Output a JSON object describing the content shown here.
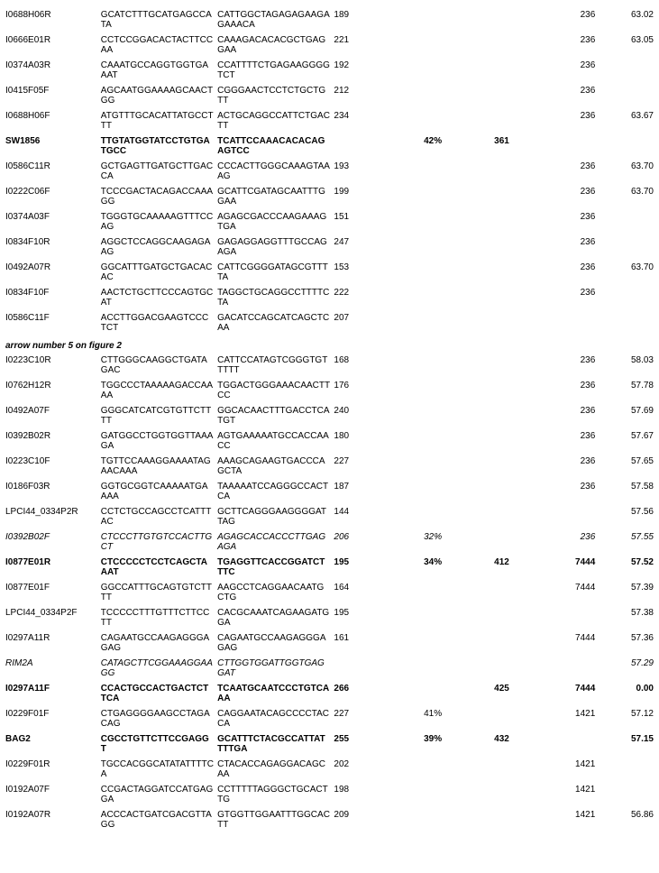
{
  "columns": {
    "id_width": 90,
    "seq1_width": 110,
    "seq2_width": 110,
    "num1_width": 60,
    "pct_width": 70,
    "num2_width": 60,
    "num3_width": 60,
    "num4_width": 55
  },
  "section_header": "arrow number 5 on figure 2",
  "rows": [
    {
      "id": "I0688H06R",
      "seq1": "GCATCTTTGCATGAGCCATA",
      "seq2": "CATTGGCTAGAGAGAAGAGAAACA",
      "n1": "189",
      "pct": "",
      "n2": "",
      "n3": "236",
      "n4": "63.02",
      "style": ""
    },
    {
      "id": "I0666E01R",
      "seq1": "CCTCCGGACACTACTTCCAA",
      "seq2": "CAAAGACACACGCTGAGGAA",
      "n1": "221",
      "pct": "",
      "n2": "",
      "n3": "236",
      "n4": "63.05",
      "style": ""
    },
    {
      "id": "I0374A03R",
      "seq1": "CAAATGCCAGGTGGTGAAAT",
      "seq2": "CCATTTTCTGAGAAGGGGTCT",
      "n1": "192",
      "pct": "",
      "n2": "",
      "n3": "236",
      "n4": "",
      "style": ""
    },
    {
      "id": "I0415F05F",
      "seq1": "AGCAATGGAAAAGCAACTGG",
      "seq2": "CGGGAACTCCTCTGCTGTT",
      "n1": "212",
      "pct": "",
      "n2": "",
      "n3": "236",
      "n4": "",
      "style": ""
    },
    {
      "id": "I0688H06F",
      "seq1": "ATGTTTGCACATTATGCCTTT",
      "seq2": "ACTGCAGGCCATTCTGACTT",
      "n1": "234",
      "pct": "",
      "n2": "",
      "n3": "236",
      "n4": "63.67",
      "style": ""
    },
    {
      "id": "SW1856",
      "seq1": "TTGTATGGTATCCTGTGATGCC",
      "seq2": "TCATTCCAAACACACAGAGTCC",
      "n1": "",
      "pct": "42%",
      "n2": "361",
      "n3": "",
      "n4": "",
      "style": "bold"
    },
    {
      "id": "I0586C11R",
      "seq1": "GCTGAGTTGATGCTTGACCA",
      "seq2": "CCCACTTGGGCAAAGTAAAG",
      "n1": "193",
      "pct": "",
      "n2": "",
      "n3": "236",
      "n4": "63.70",
      "style": ""
    },
    {
      "id": "I0222C06F",
      "seq1": "TCCCGACTACAGACCAAAGG",
      "seq2": "GCATTCGATAGCAATTTGGAA",
      "n1": "199",
      "pct": "",
      "n2": "",
      "n3": "236",
      "n4": "63.70",
      "style": ""
    },
    {
      "id": "I0374A03F",
      "seq1": "TGGGTGCAAAAAGTTTCCAG",
      "seq2": "AGAGCGACCCAAGAAAGTGA",
      "n1": "151",
      "pct": "",
      "n2": "",
      "n3": "236",
      "n4": "",
      "style": ""
    },
    {
      "id": "I0834F10R",
      "seq1": "AGGCTCCAGGCAAGAGAAG",
      "seq2": "GAGAGGAGGTTTGCCAGAGA",
      "n1": "247",
      "pct": "",
      "n2": "",
      "n3": "236",
      "n4": "",
      "style": ""
    },
    {
      "id": "I0492A07R",
      "seq1": "GGCATTTGATGCTGACACAC",
      "seq2": "CATTCGGGGATAGCGTTTTA",
      "n1": "153",
      "pct": "",
      "n2": "",
      "n3": "236",
      "n4": "63.70",
      "style": ""
    },
    {
      "id": "I0834F10F",
      "seq1": "AACTCTGCTTCCCAGTGCAT",
      "seq2": "TAGGCTGCAGGCCTTTTCTA",
      "n1": "222",
      "pct": "",
      "n2": "",
      "n3": "236",
      "n4": "",
      "style": ""
    },
    {
      "id": "I0586C11F",
      "seq1": "ACCTTGGACGAAGTCCCTCT",
      "seq2": "GACATCCAGCATCAGCTCAA",
      "n1": "207",
      "pct": "",
      "n2": "",
      "n3": "",
      "n4": "",
      "style": ""
    },
    {
      "section": true
    },
    {
      "id": "I0223C10R",
      "seq1": "CTTGGGCAAGGCTGATAGAC",
      "seq2": "CATTCCATAGTCGGGTGTTTTT",
      "n1": "168",
      "pct": "",
      "n2": "",
      "n3": "236",
      "n4": "58.03",
      "style": ""
    },
    {
      "id": "I0762H12R",
      "seq1": "TGGCCCTAAAAAGACCAAAA",
      "seq2": "TGGACTGGGAAACAACTTCC",
      "n1": "176",
      "pct": "",
      "n2": "",
      "n3": "236",
      "n4": "57.78",
      "style": ""
    },
    {
      "id": "I0492A07F",
      "seq1": "GGGCATCATCGTGTTCTTTT",
      "seq2": "GGCACAACTTTGACCTCATGT",
      "n1": "240",
      "pct": "",
      "n2": "",
      "n3": "236",
      "n4": "57.69",
      "style": ""
    },
    {
      "id": "I0392B02R",
      "seq1": "GATGGCCTGGTGGTTAAAGA",
      "seq2": "AGTGAAAAATGCCACCAACC",
      "n1": "180",
      "pct": "",
      "n2": "",
      "n3": "236",
      "n4": "57.67",
      "style": ""
    },
    {
      "id": "I0223C10F",
      "seq1": "TGTTCCAAAGGAAAATAGAACAAA",
      "seq2": "AAAGCAGAAGTGACCCAGCTA",
      "n1": "227",
      "pct": "",
      "n2": "",
      "n3": "236",
      "n4": "57.65",
      "style": ""
    },
    {
      "id": "I0186F03R",
      "seq1": "GGTGCGGTCAAAAATGAAAA",
      "seq2": "TAAAAATCCAGGGCCACTCA",
      "n1": "187",
      "pct": "",
      "n2": "",
      "n3": "236",
      "n4": "57.58",
      "style": ""
    },
    {
      "id": "LPCI44_0334P2R",
      "seq1": "CCTCTGCCAGCCTCATTTAC",
      "seq2": "GCTTCAGGGAAGGGGATTAG",
      "n1": "144",
      "pct": "",
      "n2": "",
      "n3": "",
      "n4": "57.56",
      "style": ""
    },
    {
      "id": "I0392B02F",
      "seq1": "CTCCCTTGTGTCCACTTGCT",
      "seq2": "AGAGCACCACCCTTGAGAGA",
      "n1": "206",
      "pct": "32%",
      "n2": "",
      "n3": "236",
      "n4": "57.55",
      "style": "italic"
    },
    {
      "id": "I0877E01R",
      "seq1": "CTCCCCCTCCTCAGCTAAAT",
      "seq2": "TGAGGTTCACCGGATCTTTC",
      "n1": "195",
      "pct": "34%",
      "n2": "412",
      "n3": "7444",
      "n4": "57.52",
      "style": "bold"
    },
    {
      "id": "I0877E01F",
      "seq1": "GGCCATTTGCAGTGTCTTTT",
      "seq2": "AAGCCTCAGGAACAATGCTG",
      "n1": "164",
      "pct": "",
      "n2": "",
      "n3": "7444",
      "n4": "57.39",
      "style": ""
    },
    {
      "id": "LPCI44_0334P2F",
      "seq1": "TCCCCCTTTGTTTCTTCCTT",
      "seq2": "CACGCAAATCAGAAGATGGA",
      "n1": "195",
      "pct": "",
      "n2": "",
      "n3": "",
      "n4": "57.38",
      "style": ""
    },
    {
      "id": "I0297A11R",
      "seq1": "CAGAATGCCAAGAGGGAGAG",
      "seq2": "CAGAATGCCAAGAGGGAGAG",
      "n1": "161",
      "pct": "",
      "n2": "",
      "n3": "7444",
      "n4": "57.36",
      "style": ""
    },
    {
      "id": "RIM2A",
      "seq1": "CATAGCTTCGGAAAGGAAGG",
      "seq2": "CTTGGTGGATTGGTGAGGAT",
      "n1": "",
      "pct": "",
      "n2": "",
      "n3": "",
      "n4": "57.29",
      "style": "italic"
    },
    {
      "id": "I0297A11F",
      "seq1": "CCACTGCCACTGACTCTTCA",
      "seq2": "TCAATGCAATCCCTGTCAAA",
      "n1": "266",
      "pct": "",
      "n2": "425",
      "n3": "7444",
      "n4": "0.00",
      "style": "bold"
    },
    {
      "id": "I0229F01F",
      "seq1": "CTGAGGGGAAGCCTAGACAG",
      "seq2": "CAGGAATACAGCCCCTACCA",
      "n1": "227",
      "pct": "41%",
      "n2": "",
      "n3": "1421",
      "n4": "57.12",
      "style": ""
    },
    {
      "id": "BAG2",
      "seq1": "CGCCTGTTCTTCCGAGGT",
      "seq2": "GCATTTCTACGCCATTATTTTGA",
      "n1": "255",
      "pct": "39%",
      "n2": "432",
      "n3": "",
      "n4": "57.15",
      "style": "bold"
    },
    {
      "id": "I0229F01R",
      "seq1": "TGCCACGGCATATATTTTCA",
      "seq2": "CTACACCAGAGGACAGCAA",
      "n1": "202",
      "pct": "",
      "n2": "",
      "n3": "1421",
      "n4": "",
      "style": ""
    },
    {
      "id": "I0192A07F",
      "seq1": "CCGACTAGGATCCATGAGGA",
      "seq2": "CCTTTTTAGGGCTGCACTTG",
      "n1": "198",
      "pct": "",
      "n2": "",
      "n3": "1421",
      "n4": "",
      "style": ""
    },
    {
      "id": "I0192A07R",
      "seq1": "ACCCACTGATCGACGTTAGG",
      "seq2": "GTGGTTGGAATTTGGCACTT",
      "n1": "209",
      "pct": "",
      "n2": "",
      "n3": "1421",
      "n4": "56.86",
      "style": ""
    }
  ]
}
